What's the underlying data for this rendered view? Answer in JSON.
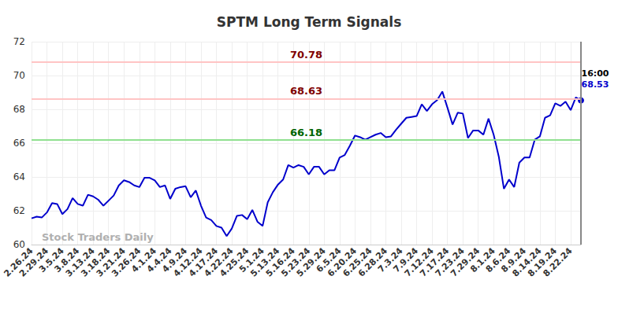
{
  "chart_data": {
    "type": "line",
    "title": "SPTM Long Term Signals",
    "watermark": "Stock Traders Daily",
    "annotations": [
      "16:00"
    ],
    "categories": [
      "2.26.24",
      null,
      null,
      "2.29.24",
      null,
      null,
      "3.5.24",
      null,
      null,
      "3.8.24",
      null,
      null,
      "3.13.24",
      null,
      null,
      "3.18.24",
      null,
      null,
      "3.21.24",
      null,
      null,
      "3.26.24",
      null,
      null,
      "4.1.24",
      null,
      null,
      "4.4.24",
      null,
      null,
      "4.9.24",
      null,
      null,
      "4.12.24",
      null,
      null,
      "4.17.24",
      null,
      null,
      "4.22.24",
      null,
      null,
      "4.25.24",
      null,
      null,
      "5.1.24",
      null,
      null,
      "5.13.24",
      null,
      null,
      "5.16.24",
      null,
      null,
      "5.23.24",
      null,
      null,
      "5.29.24",
      null,
      null,
      "6.5.24",
      null,
      null,
      "6.20.24",
      null,
      null,
      "6.25.24",
      null,
      null,
      "6.28.24",
      null,
      null,
      "7.3.24",
      null,
      null,
      "7.9.24",
      null,
      null,
      "7.12.24",
      null,
      null,
      "7.17.24",
      null,
      null,
      "7.23.24",
      null,
      null,
      "7.29.24",
      null,
      null,
      "8.1.24",
      null,
      null,
      "8.6.24",
      null,
      null,
      "8.9.24",
      null,
      null,
      "8.14.24",
      null,
      null,
      "8.19.24",
      null,
      null,
      "8.22.24",
      null,
      null
    ],
    "values": [
      61.55,
      61.65,
      61.6,
      61.9,
      62.45,
      62.4,
      61.8,
      62.1,
      62.75,
      62.4,
      62.3,
      62.95,
      62.85,
      62.65,
      62.3,
      62.6,
      62.9,
      63.5,
      63.8,
      63.7,
      63.5,
      63.4,
      63.95,
      63.95,
      63.8,
      63.4,
      63.5,
      62.7,
      63.3,
      63.4,
      63.45,
      62.8,
      63.2,
      62.3,
      61.6,
      61.45,
      61.1,
      61.0,
      60.5,
      60.95,
      61.7,
      61.75,
      61.5,
      62.05,
      61.35,
      61.1,
      62.5,
      63.1,
      63.55,
      63.85,
      64.7,
      64.55,
      64.7,
      64.6,
      64.15,
      64.6,
      64.6,
      64.15,
      64.4,
      64.4,
      65.15,
      65.3,
      65.85,
      66.45,
      66.35,
      66.2,
      66.35,
      66.5,
      66.6,
      66.35,
      66.4,
      66.8,
      67.15,
      67.5,
      67.55,
      67.6,
      68.3,
      67.9,
      68.3,
      68.55,
      69.05,
      68.1,
      67.1,
      67.8,
      67.75,
      66.3,
      66.75,
      66.75,
      66.5,
      67.45,
      66.5,
      65.2,
      63.3,
      63.85,
      63.4,
      64.85,
      65.15,
      65.15,
      66.2,
      66.4,
      67.5,
      67.65,
      68.35,
      68.2,
      68.45,
      67.95,
      68.7,
      68.53
    ],
    "color": "#0000cc",
    "reference_lines": [
      {
        "value": 70.78,
        "color": "#ffc4c4",
        "label_color": "#800000"
      },
      {
        "value": 68.63,
        "color": "#ffc4c4",
        "label_color": "#800000"
      },
      {
        "value": 66.18,
        "color": "#90e090",
        "label_color": "#006400"
      }
    ],
    "ylim": [
      60,
      72
    ],
    "yticks": [
      60,
      62,
      64,
      66,
      68,
      70,
      72
    ],
    "grid": true
  }
}
